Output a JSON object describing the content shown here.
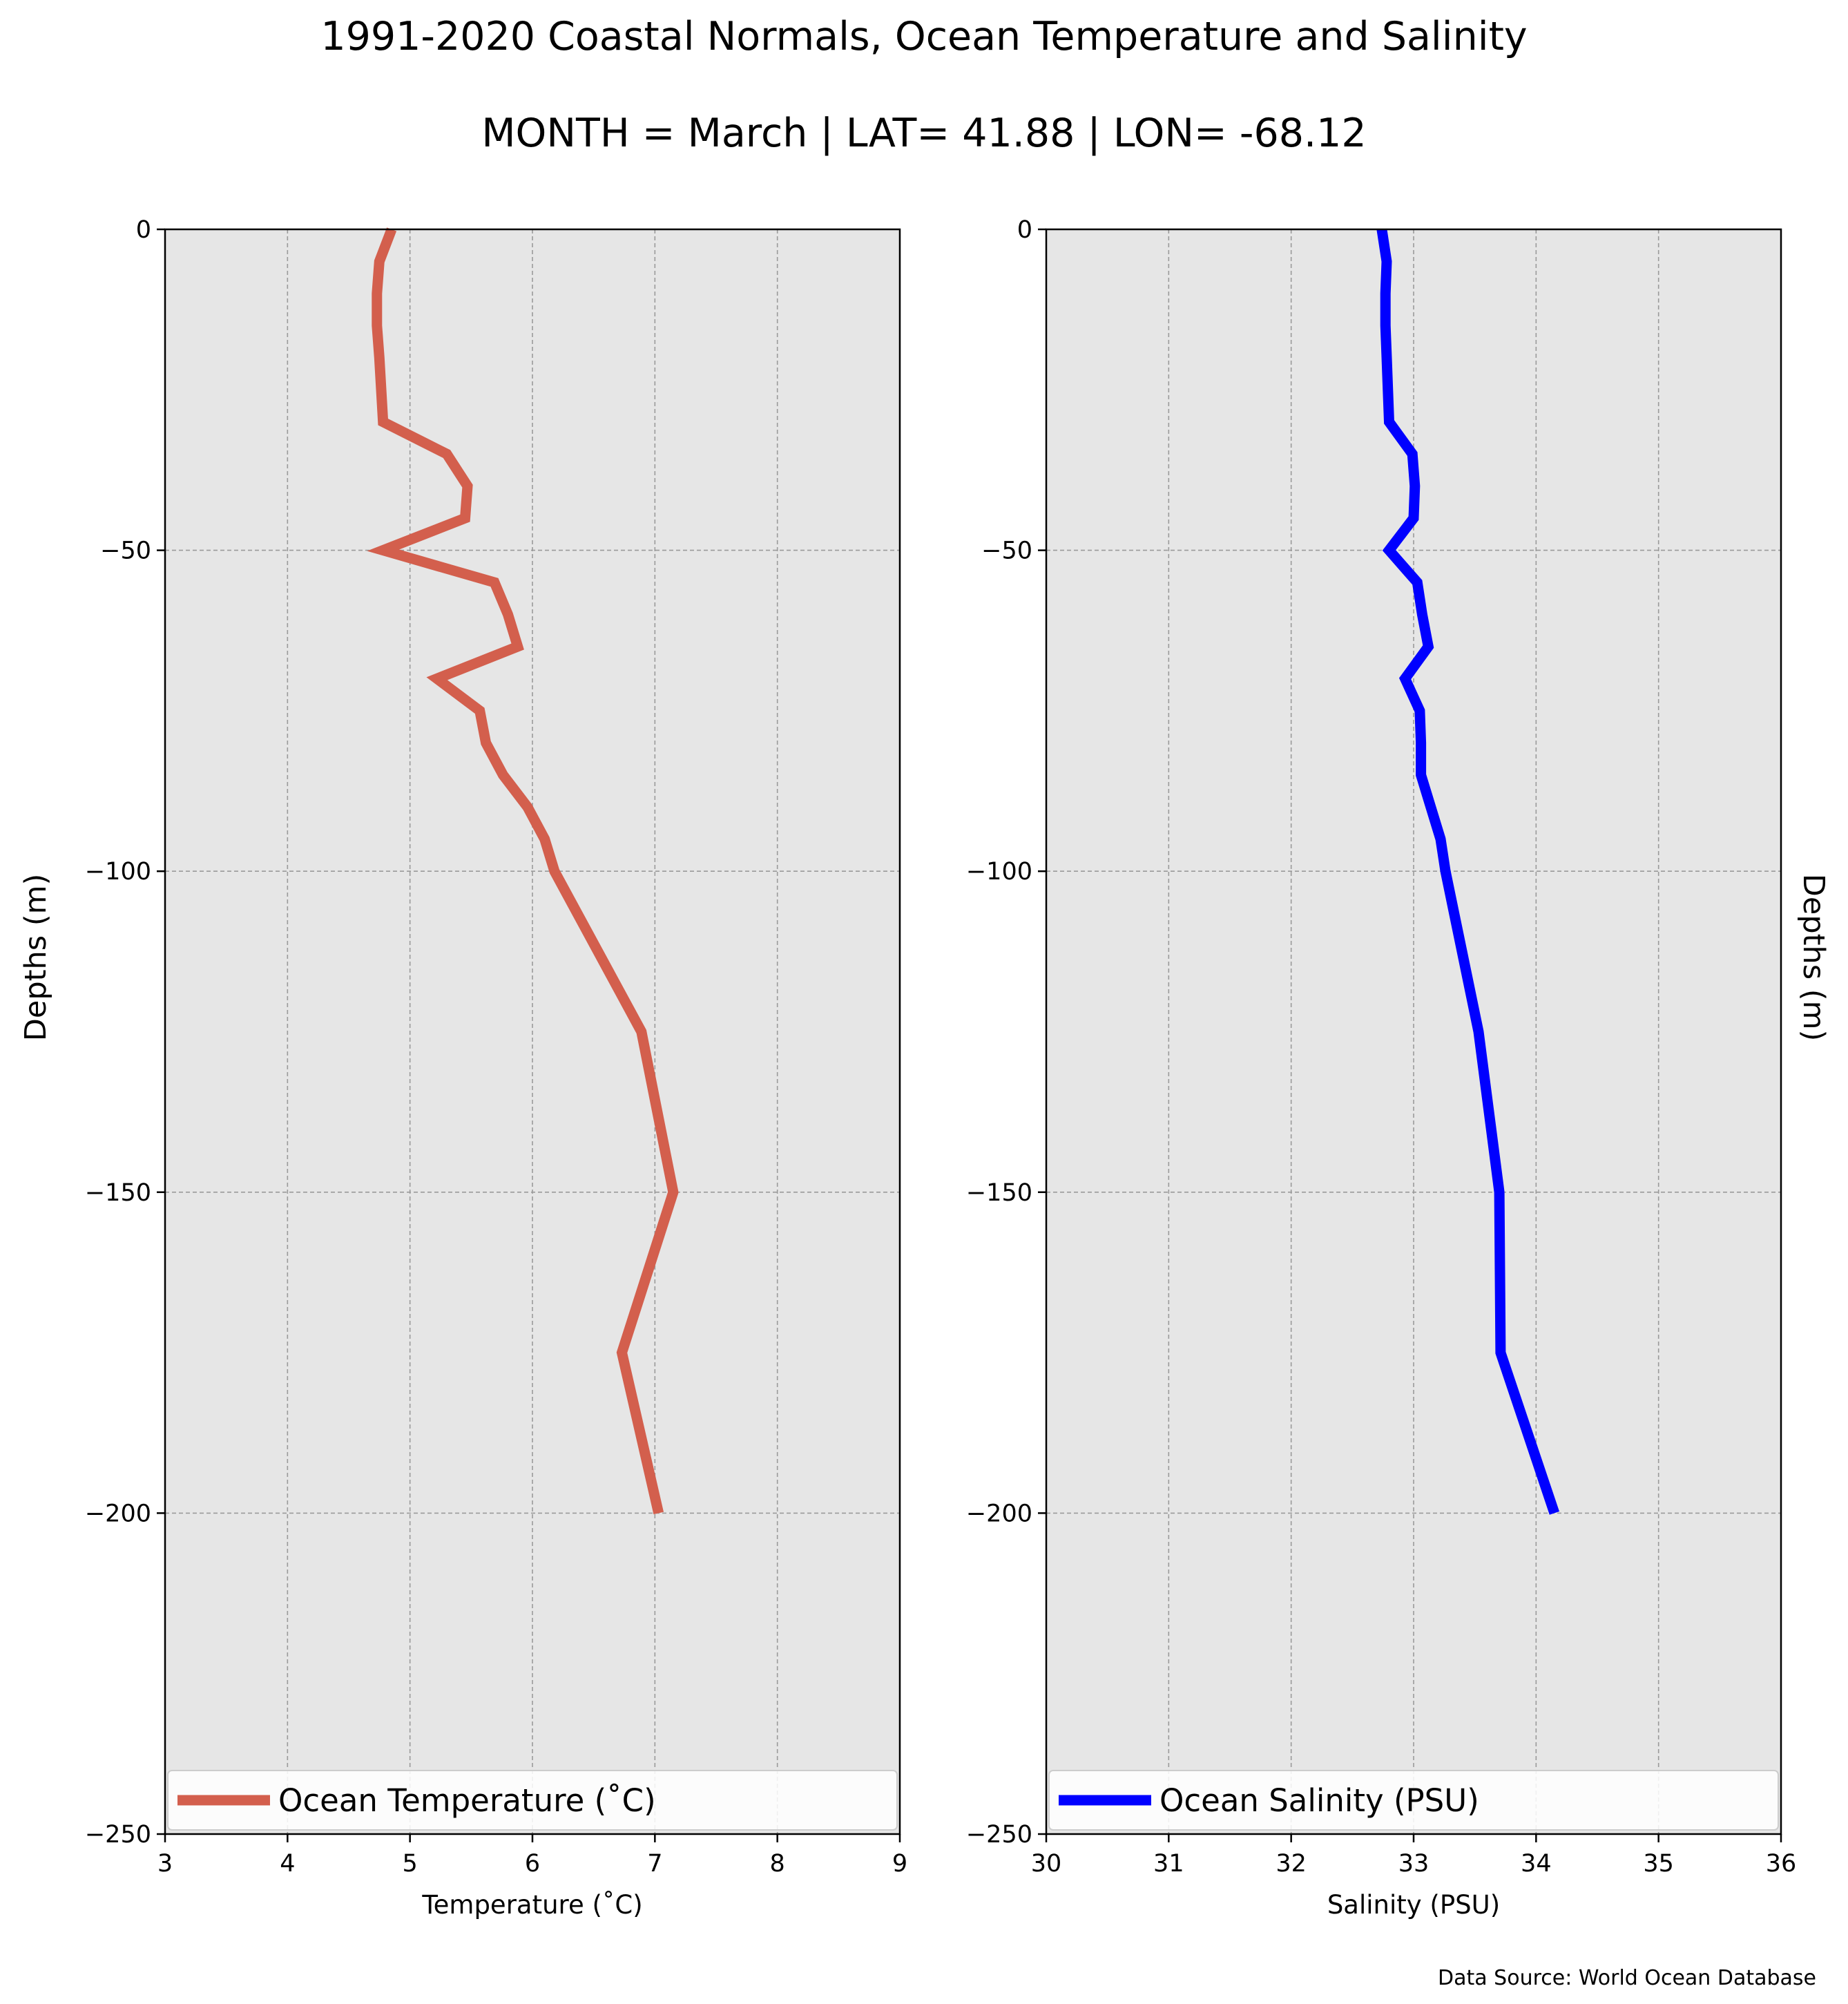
{
  "title": "1991-2020 Coastal Normals, Ocean Temperature and Salinity",
  "subtitle": "MONTH = March | LAT= 41.88 | LON= -68.12",
  "source_note": "Data Source: World Ocean Database",
  "colors": {
    "temperature": "#d35f4d",
    "salinity": "#0000ff",
    "plot_bg": "#e6e6e6",
    "grid": "#9a9a9a"
  },
  "chart_data": [
    {
      "type": "line",
      "xlabel": "Temperature ($^\\circ$C)",
      "xlabel_display": "Temperature (˚C)",
      "ylabel": "Depths (m)",
      "xlim": [
        3,
        9
      ],
      "ylim": [
        -250,
        0
      ],
      "xticks": [
        3,
        4,
        5,
        6,
        7,
        8,
        9
      ],
      "yticks": [
        0,
        -50,
        -100,
        -150,
        -200,
        -250
      ],
      "ytick_labels": [
        "0",
        "−50",
        "−100",
        "−150",
        "−200",
        "−250"
      ],
      "grid": true,
      "legend_position": "bottom",
      "series": [
        {
          "name": "Ocean Temperature (˚C)",
          "x": [
            4.85,
            4.75,
            4.73,
            4.73,
            4.75,
            4.78,
            5.3,
            5.47,
            5.45,
            4.78,
            5.69,
            5.8,
            5.88,
            5.22,
            5.57,
            5.62,
            5.76,
            5.96,
            6.1,
            6.18,
            6.89,
            7.15,
            6.73,
            7.03
          ],
          "y": [
            0,
            -5,
            -10,
            -15,
            -20,
            -30,
            -35,
            -40,
            -45,
            -50,
            -55,
            -60,
            -65,
            -70,
            -75,
            -80,
            -85,
            -90,
            -95,
            -100,
            -125,
            -150,
            -175,
            -200
          ]
        }
      ]
    },
    {
      "type": "line",
      "xlabel": "Salinity (PSU)",
      "ylabel": "Depths (m)",
      "xlim": [
        30,
        36
      ],
      "ylim": [
        -250,
        0
      ],
      "xticks": [
        30,
        31,
        32,
        33,
        34,
        35,
        36
      ],
      "yticks": [
        0,
        -50,
        -100,
        -150,
        -200,
        -250
      ],
      "ytick_labels": [
        "0",
        "−50",
        "−100",
        "−150",
        "−200",
        "−250"
      ],
      "grid": true,
      "legend_position": "bottom",
      "series": [
        {
          "name": "Ocean Salinity (PSU)",
          "x": [
            32.74,
            32.78,
            32.77,
            32.77,
            32.78,
            32.8,
            32.99,
            33.01,
            33.0,
            32.8,
            33.03,
            33.07,
            33.12,
            32.93,
            33.05,
            33.06,
            33.06,
            33.14,
            33.22,
            33.26,
            33.53,
            33.7,
            33.71,
            34.15
          ],
          "y": [
            0,
            -5,
            -10,
            -15,
            -20,
            -30,
            -35,
            -40,
            -45,
            -50,
            -55,
            -60,
            -65,
            -70,
            -75,
            -80,
            -85,
            -90,
            -95,
            -100,
            -125,
            -150,
            -175,
            -200
          ]
        }
      ]
    }
  ]
}
